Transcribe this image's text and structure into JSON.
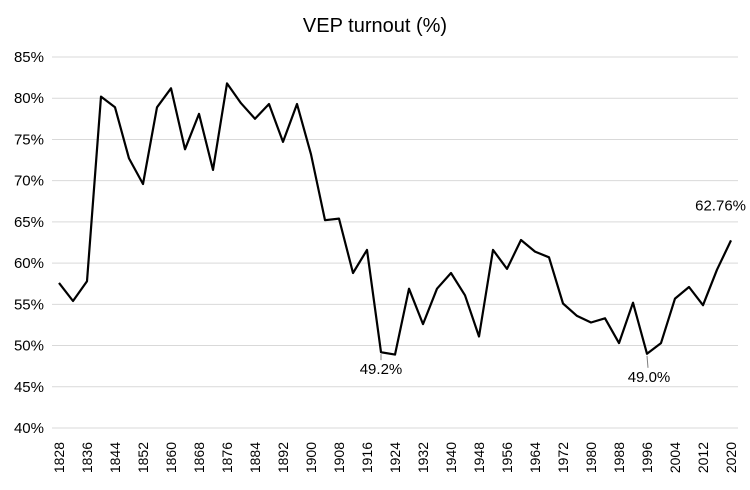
{
  "chart_data": {
    "type": "line",
    "title": "VEP turnout (%)",
    "xlabel": "",
    "ylabel": "",
    "ylim": [
      40,
      85
    ],
    "yticks": [
      "40%",
      "45%",
      "50%",
      "55%",
      "60%",
      "65%",
      "70%",
      "75%",
      "80%",
      "85%"
    ],
    "ytick_values": [
      40,
      45,
      50,
      55,
      60,
      65,
      70,
      75,
      80,
      85
    ],
    "xticks": [
      1828,
      1836,
      1844,
      1852,
      1860,
      1868,
      1876,
      1884,
      1892,
      1900,
      1908,
      1916,
      1924,
      1932,
      1940,
      1948,
      1956,
      1964,
      1972,
      1980,
      1988,
      1996,
      2004,
      2012,
      2020
    ],
    "grid": true,
    "legend": "none",
    "series": [
      {
        "color": "#000000",
        "x": [
          1828,
          1832,
          1836,
          1840,
          1844,
          1848,
          1852,
          1856,
          1860,
          1864,
          1868,
          1872,
          1876,
          1880,
          1884,
          1888,
          1892,
          1896,
          1900,
          1904,
          1908,
          1912,
          1916,
          1920,
          1924,
          1928,
          1932,
          1936,
          1940,
          1944,
          1948,
          1952,
          1956,
          1960,
          1964,
          1968,
          1972,
          1976,
          1980,
          1984,
          1988,
          1992,
          1996,
          2000,
          2004,
          2008,
          2012,
          2016,
          2020
        ],
        "y": [
          57.6,
          55.4,
          57.8,
          80.2,
          78.9,
          72.7,
          69.6,
          78.9,
          81.2,
          73.8,
          78.1,
          71.3,
          81.8,
          79.4,
          77.5,
          79.3,
          74.7,
          79.3,
          73.2,
          65.2,
          65.4,
          58.8,
          61.6,
          49.2,
          48.9,
          56.9,
          52.6,
          56.9,
          58.8,
          56.1,
          51.1,
          61.6,
          59.3,
          62.8,
          61.4,
          60.7,
          55.1,
          53.6,
          52.8,
          53.3,
          50.3,
          55.2,
          49.0,
          50.3,
          55.7,
          57.1,
          54.9,
          59.2,
          62.76
        ]
      }
    ],
    "annotations": [
      {
        "text": "49.2%",
        "x": 1920,
        "y": 49.2
      },
      {
        "text": "49.0%",
        "x": 1996,
        "y": 49.0
      },
      {
        "text": "62.76%",
        "x": 2020,
        "y": 62.76
      }
    ]
  }
}
